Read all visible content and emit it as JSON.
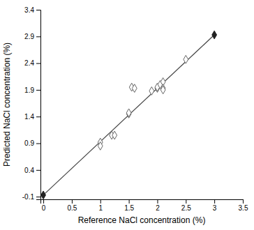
{
  "chart_data": {
    "type": "scatter",
    "title": "",
    "xlabel": "Reference NaCl concentration (%)",
    "ylabel": "Predicted NaCl concentration (%)",
    "xlim": [
      -0.05,
      3.5
    ],
    "ylim": [
      -0.15,
      3.4
    ],
    "xticks": [
      0,
      0.5,
      1,
      1.5,
      2,
      2.5,
      3,
      3.5
    ],
    "yticks": [
      -0.1,
      0.4,
      0.9,
      1.4,
      1.9,
      2.4,
      2.9,
      3.4
    ],
    "series": [
      {
        "type": "line",
        "color": "#444444",
        "line_style": "solid",
        "x": [
          0.0,
          3.0
        ],
        "values": [
          -0.07,
          2.93
        ]
      },
      {
        "type": "scatter",
        "marker": "diamond-open",
        "color": "#666666",
        "x": [
          1.0,
          1.0,
          1.2,
          1.25,
          1.5,
          1.5,
          1.55,
          1.6,
          1.9,
          2.0,
          2.0,
          2.05,
          2.1,
          2.1,
          2.1,
          2.5
        ],
        "values": [
          0.92,
          0.85,
          1.05,
          1.05,
          1.45,
          1.47,
          1.95,
          1.93,
          1.88,
          1.93,
          1.95,
          2.0,
          2.05,
          1.93,
          1.9,
          2.47
        ]
      },
      {
        "type": "scatter",
        "marker": "diamond",
        "color": "#222222",
        "x": [
          0.0,
          3.0
        ],
        "values": [
          -0.07,
          2.93
        ]
      }
    ]
  }
}
